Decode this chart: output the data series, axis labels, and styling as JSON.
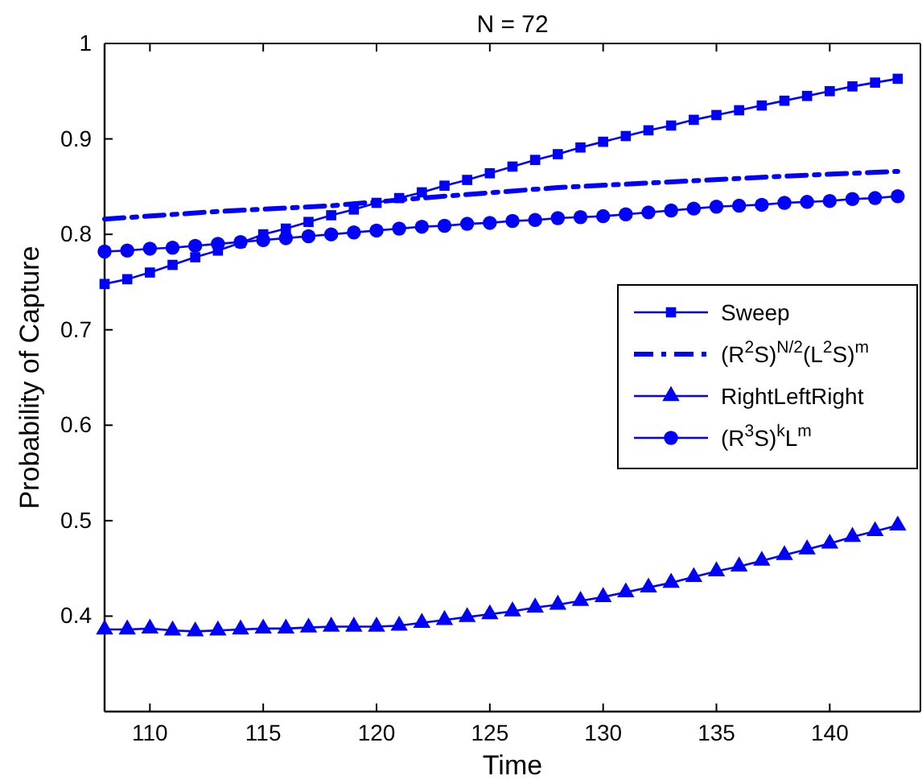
{
  "chart_data": {
    "type": "line",
    "title": "N = 72",
    "xlabel": "Time",
    "ylabel": "Probability of Capture",
    "xlim": [
      108,
      144
    ],
    "xticks": [
      110,
      115,
      120,
      125,
      130,
      135,
      140
    ],
    "ylim": [
      0.3,
      1
    ],
    "yticks": [
      0.4,
      0.5,
      0.6,
      0.7,
      0.8,
      0.9,
      1
    ],
    "grid": false,
    "legend": "right",
    "series": [
      {
        "name": "Sweep",
        "color": "#0000ff",
        "marker": "square",
        "line_style": "solid",
        "x": [
          108,
          109,
          110,
          111,
          112,
          113,
          114,
          115,
          116,
          117,
          118,
          119,
          120,
          121,
          122,
          123,
          124,
          125,
          126,
          127,
          128,
          129,
          130,
          131,
          132,
          133,
          134,
          135,
          136,
          137,
          138,
          139,
          140,
          141,
          142,
          143
        ],
        "values": [
          0.748,
          0.753,
          0.76,
          0.768,
          0.776,
          0.783,
          0.791,
          0.8,
          0.806,
          0.813,
          0.82,
          0.826,
          0.833,
          0.838,
          0.844,
          0.851,
          0.857,
          0.864,
          0.871,
          0.878,
          0.884,
          0.891,
          0.897,
          0.903,
          0.909,
          0.914,
          0.92,
          0.925,
          0.93,
          0.935,
          0.94,
          0.945,
          0.95,
          0.955,
          0.959,
          0.963
        ]
      },
      {
        "name": "(R$^{2}$S)$^{N/2}$(L$^{2}$S)$^{m}$",
        "color": "#0000ff",
        "marker": "none",
        "line_style": "dashdot",
        "x": [
          108,
          113,
          118,
          123,
          128,
          133,
          138,
          143
        ],
        "values": [
          0.816,
          0.824,
          0.83,
          0.84,
          0.849,
          0.855,
          0.861,
          0.866
        ]
      },
      {
        "name": "RightLeftRight",
        "color": "#0000ff",
        "marker": "triangle",
        "line_style": "solid",
        "x": [
          108,
          109,
          110,
          111,
          112,
          113,
          114,
          115,
          116,
          117,
          118,
          119,
          120,
          121,
          122,
          123,
          124,
          125,
          126,
          127,
          128,
          129,
          130,
          131,
          132,
          133,
          134,
          135,
          136,
          137,
          138,
          139,
          140,
          141,
          142,
          143
        ],
        "values": [
          0.386,
          0.386,
          0.387,
          0.385,
          0.384,
          0.385,
          0.386,
          0.387,
          0.387,
          0.388,
          0.389,
          0.389,
          0.389,
          0.39,
          0.393,
          0.396,
          0.399,
          0.402,
          0.405,
          0.409,
          0.412,
          0.416,
          0.42,
          0.425,
          0.43,
          0.435,
          0.441,
          0.447,
          0.452,
          0.458,
          0.464,
          0.47,
          0.476,
          0.483,
          0.489,
          0.495
        ]
      },
      {
        "name": "(R$^{3}$S)$^{k}$L$^{m}$",
        "color": "#0000ff",
        "marker": "circle",
        "line_style": "solid",
        "x": [
          108,
          109,
          110,
          111,
          112,
          113,
          114,
          115,
          116,
          117,
          118,
          119,
          120,
          121,
          122,
          123,
          124,
          125,
          126,
          127,
          128,
          129,
          130,
          131,
          132,
          133,
          134,
          135,
          136,
          137,
          138,
          139,
          140,
          141,
          142,
          143
        ],
        "values": [
          0.782,
          0.783,
          0.785,
          0.786,
          0.788,
          0.79,
          0.792,
          0.794,
          0.796,
          0.798,
          0.8,
          0.802,
          0.804,
          0.806,
          0.808,
          0.809,
          0.811,
          0.812,
          0.814,
          0.815,
          0.817,
          0.818,
          0.819,
          0.821,
          0.823,
          0.825,
          0.827,
          0.829,
          0.83,
          0.831,
          0.833,
          0.834,
          0.835,
          0.837,
          0.838,
          0.84
        ]
      }
    ]
  }
}
